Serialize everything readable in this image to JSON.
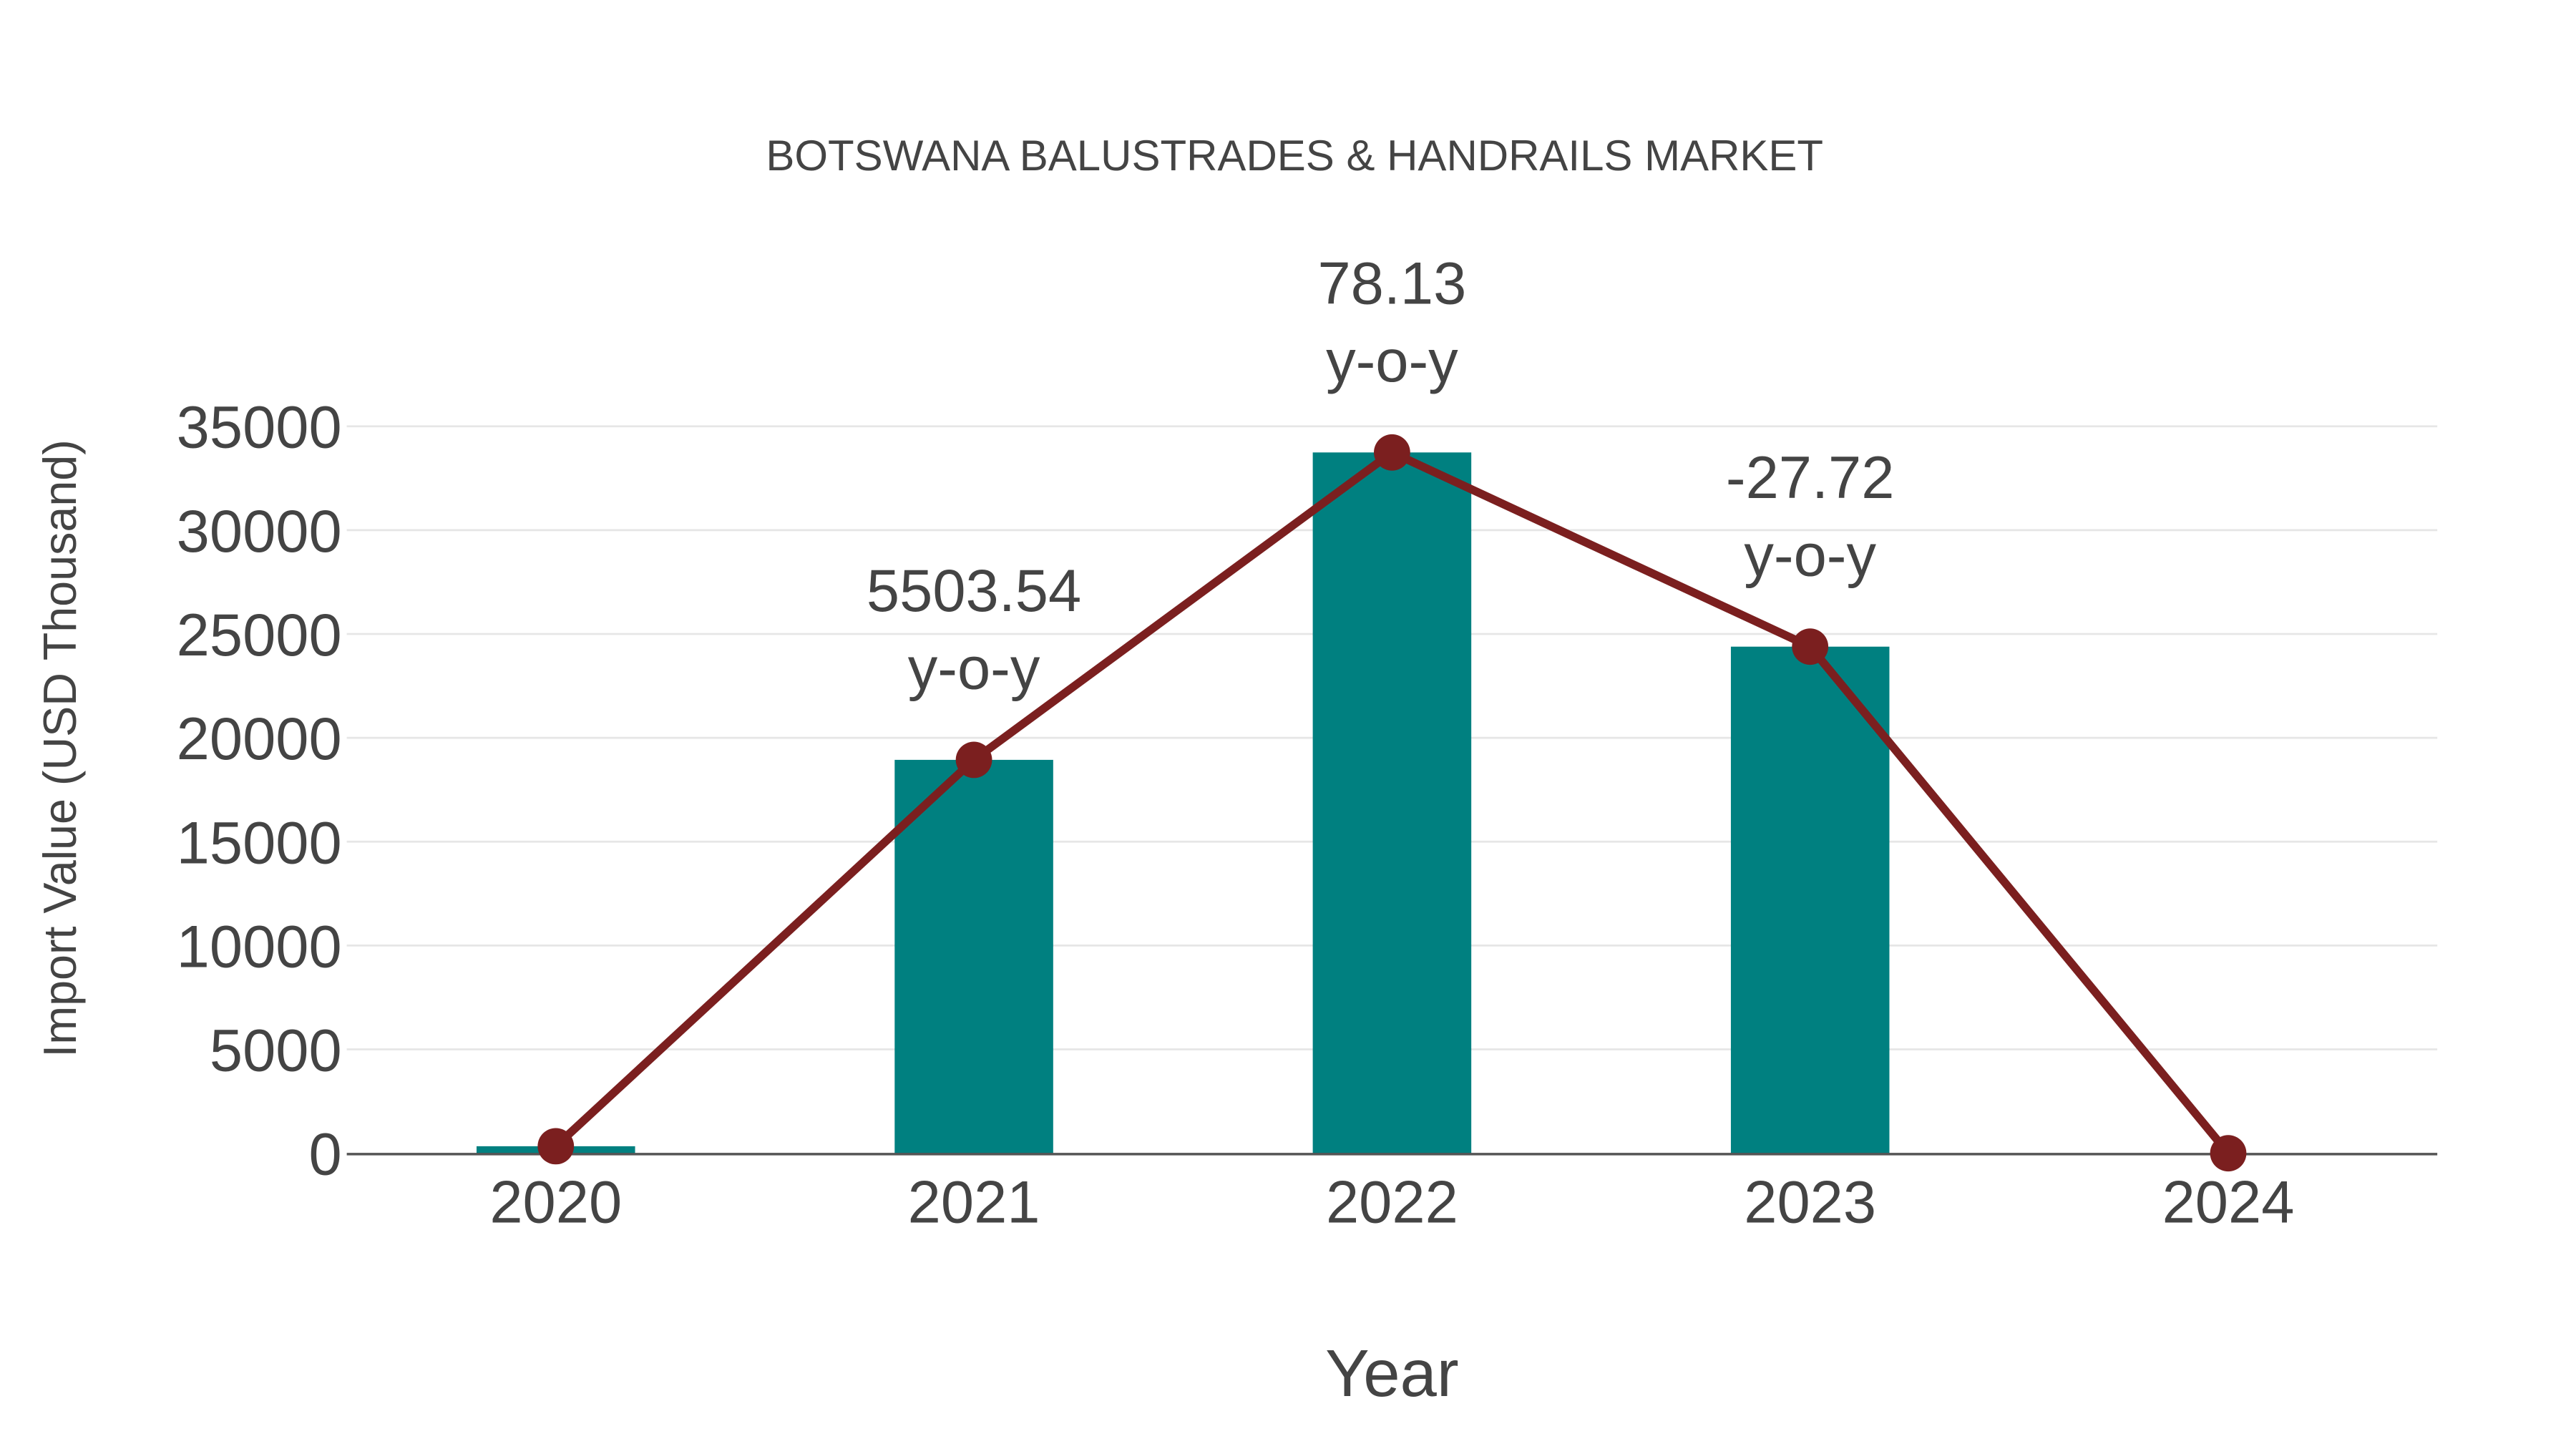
{
  "chart_data": {
    "type": "bar",
    "title": "BOTSWANA BALUSTRADES & HANDRAILS MARKET",
    "xlabel": "Year",
    "ylabel": "Import Value (USD Thousand)",
    "categories": [
      "2020",
      "2021",
      "2022",
      "2023",
      "2024"
    ],
    "series": [
      {
        "name": "Import Value",
        "type": "bar",
        "color": "#008080",
        "values": [
          338,
          18940,
          33740,
          24390,
          0
        ]
      },
      {
        "name": "Import Value Trend",
        "type": "line",
        "color": "#7b1f1f",
        "values": [
          338,
          18940,
          33740,
          24390,
          0
        ]
      }
    ],
    "annotations": [
      {
        "category": "2021",
        "value": "5503.54",
        "suffix": "y-o-y"
      },
      {
        "category": "2022",
        "value": "78.13",
        "suffix": "y-o-y"
      },
      {
        "category": "2023",
        "value": "-27.72",
        "suffix": "y-o-y"
      }
    ],
    "yticks": [
      0,
      5000,
      10000,
      15000,
      20000,
      25000,
      30000,
      35000
    ],
    "ylim": [
      0,
      35000
    ],
    "grid": true,
    "legend": "none"
  },
  "colors": {
    "bar": "#008080",
    "line": "#7b1f1f",
    "text": "#444444",
    "grid": "#e6e6e6",
    "axis": "#555555"
  }
}
